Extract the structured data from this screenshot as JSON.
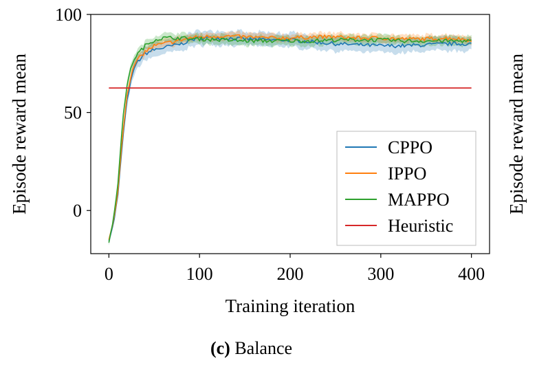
{
  "chart_data": {
    "type": "line",
    "xlabel": "Training iteration",
    "ylabel": "Episode reward mean",
    "right_ylabel": "Episode reward mean",
    "xlim": [
      -20,
      420
    ],
    "ylim": [
      -22,
      100
    ],
    "x_ticks": [
      0,
      100,
      200,
      300,
      400
    ],
    "y_ticks": [
      0,
      50,
      100
    ],
    "grid": false,
    "legend_position": "center-right",
    "series": [
      {
        "name": "CPPO",
        "color": "#1f77b4",
        "x": [
          0,
          5,
          10,
          15,
          20,
          25,
          30,
          40,
          50,
          60,
          70,
          80,
          90,
          100,
          125,
          150,
          175,
          200,
          225,
          250,
          275,
          300,
          325,
          350,
          375,
          400
        ],
        "y": [
          -15,
          -7,
          8,
          35,
          56,
          68,
          75,
          80,
          82,
          83,
          84,
          85,
          87,
          88,
          88,
          87.5,
          87,
          87,
          86,
          85,
          84.5,
          84,
          84,
          84.5,
          85,
          85
        ],
        "band": 3.8
      },
      {
        "name": "IPPO",
        "color": "#ff7f0e",
        "x": [
          0,
          5,
          10,
          15,
          20,
          25,
          30,
          40,
          50,
          60,
          70,
          80,
          90,
          100,
          125,
          150,
          175,
          200,
          225,
          250,
          275,
          300,
          325,
          350,
          375,
          400
        ],
        "y": [
          -15,
          -6,
          10,
          38,
          59,
          70,
          76,
          81,
          84,
          85,
          86,
          87,
          88,
          88.5,
          89,
          88.5,
          88,
          88,
          88.5,
          88.5,
          88,
          88,
          87.5,
          87.5,
          88,
          87
        ],
        "band": 2.2
      },
      {
        "name": "MAPPO",
        "color": "#2ca02c",
        "x": [
          0,
          5,
          10,
          15,
          20,
          25,
          30,
          40,
          50,
          60,
          70,
          80,
          90,
          100,
          125,
          150,
          175,
          200,
          225,
          250,
          275,
          300,
          325,
          350,
          375,
          400
        ],
        "y": [
          -16,
          -5,
          14,
          45,
          64,
          74,
          79,
          84,
          87,
          88,
          88,
          88,
          87.5,
          87.5,
          87,
          86.5,
          86.5,
          86.5,
          86.5,
          87,
          87,
          87,
          86.5,
          86.5,
          86.5,
          86.5
        ],
        "band": 2.6
      },
      {
        "name": "Heuristic",
        "color": "#d62728",
        "x": [
          0,
          400
        ],
        "y": [
          62.5,
          62.5
        ],
        "band": 0
      }
    ]
  },
  "caption": {
    "label": "(c)",
    "text": " Balance"
  }
}
